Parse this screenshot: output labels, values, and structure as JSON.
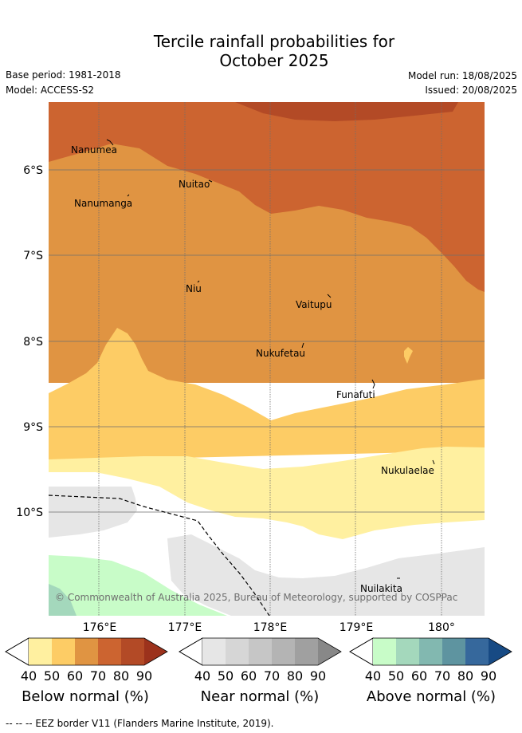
{
  "header": {
    "title_line1": "Tercile rainfall probabilities for",
    "title_line2": "October 2025",
    "base_period": "Base period: 1981-2018",
    "model": "Model: ACCESS-S2",
    "model_run": "Model run: 18/08/2025",
    "issued": "Issued: 20/08/2025"
  },
  "map": {
    "lon_ticks": [
      "176°E",
      "177°E",
      "178°E",
      "179°E",
      "180°"
    ],
    "lat_ticks": [
      "6°S",
      "7°S",
      "8°S",
      "9°S",
      "10°S"
    ],
    "places": [
      {
        "name": "Nanumea",
        "lon": 176.13,
        "lat": -5.69
      },
      {
        "name": "Nuitao",
        "lon": 177.33,
        "lat": -6.11
      },
      {
        "name": "Nanumanga",
        "lon": 176.32,
        "lat": -6.29
      },
      {
        "name": "Niu",
        "lon": 177.16,
        "lat": -7.3
      },
      {
        "name": "Vaitupu",
        "lon": 178.68,
        "lat": -7.48
      },
      {
        "name": "Nukufetau",
        "lon": 178.38,
        "lat": -8.03
      },
      {
        "name": "Funafuti",
        "lon": 179.21,
        "lat": -8.52
      },
      {
        "name": "Nukulaelae",
        "lon": 179.83,
        "lat": -9.38
      },
      {
        "name": "Nuilakita",
        "lon": 179.48,
        "lat": -10.75
      }
    ],
    "copyright": "© Commonwealth of Australia 2025, Bureau of Meteorology, supported by COSPPac"
  },
  "colorbars": [
    {
      "title": "Below normal (%)",
      "ticks": [
        "40",
        "50",
        "60",
        "70",
        "80",
        "90"
      ],
      "colors": [
        "#fff0a0",
        "#fdcc65",
        "#e09442",
        "#cc6430",
        "#b34a26",
        "#9c321c"
      ]
    },
    {
      "title": "Near normal (%)",
      "ticks": [
        "40",
        "50",
        "60",
        "70",
        "80",
        "90"
      ],
      "colors": [
        "#e6e6e6",
        "#d6d6d6",
        "#c6c6c6",
        "#b4b4b4",
        "#a0a0a0",
        "#888888"
      ]
    },
    {
      "title": "Above normal (%)",
      "ticks": [
        "40",
        "50",
        "60",
        "70",
        "80",
        "90"
      ],
      "colors": [
        "#c8fcc8",
        "#a4d8bc",
        "#82b8b0",
        "#5e94a0",
        "#36689c",
        "#174a84"
      ]
    }
  ],
  "footer": "-- -- -- EEZ border V11 (Flanders Marine Institute, 2019)."
}
